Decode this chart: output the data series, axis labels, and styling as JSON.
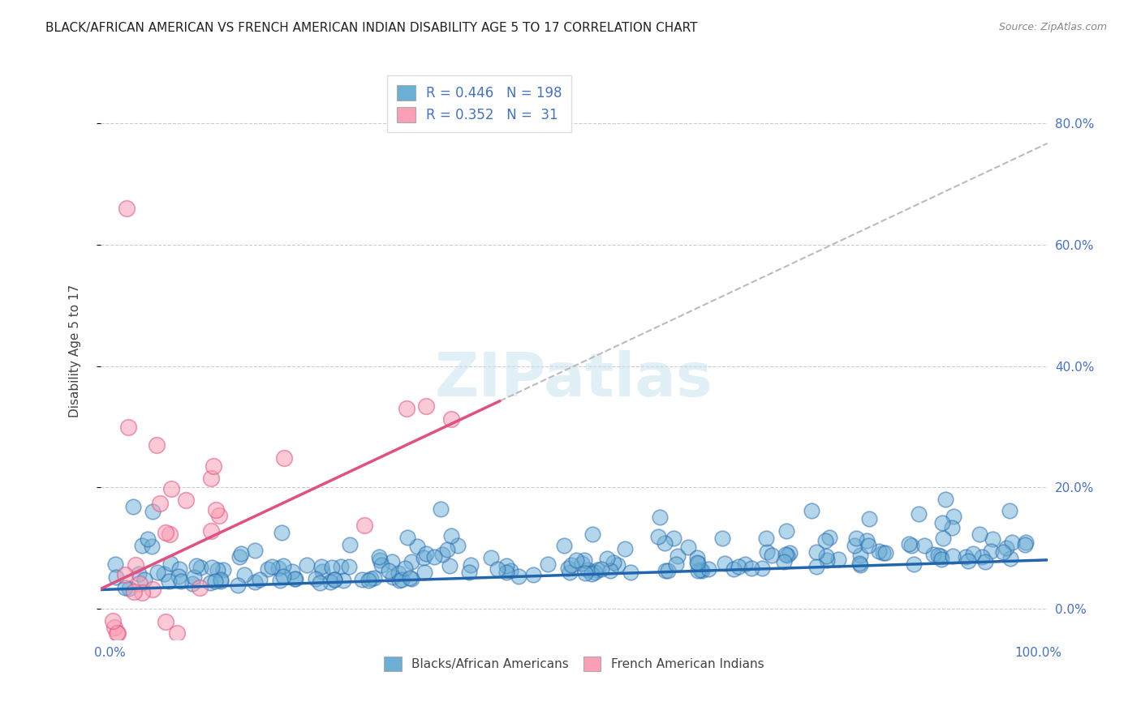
{
  "title": "BLACK/AFRICAN AMERICAN VS FRENCH AMERICAN INDIAN DISABILITY AGE 5 TO 17 CORRELATION CHART",
  "source": "Source: ZipAtlas.com",
  "ylabel": "Disability Age 5 to 17",
  "yticks": [
    0.0,
    0.2,
    0.4,
    0.6,
    0.8
  ],
  "ytick_labels": [
    "0.0%",
    "20.0%",
    "40.0%",
    "60.0%",
    "80.0%"
  ],
  "xlim": [
    -0.01,
    1.01
  ],
  "ylim": [
    -0.05,
    0.9
  ],
  "blue_R": 0.446,
  "blue_N": 198,
  "pink_R": 0.352,
  "pink_N": 31,
  "blue_color": "#6baed6",
  "pink_color": "#fa9fb5",
  "blue_line_color": "#2166ac",
  "pink_line_color": "#e05080",
  "grid_color": "#cccccc",
  "watermark": "ZIPatlas",
  "blue_scatter_seed": 42,
  "pink_scatter_seed": 7,
  "blue_intercept": 0.032,
  "blue_slope": 0.048,
  "pink_intercept": 0.04,
  "pink_slope": 0.72,
  "background_color": "#ffffff",
  "title_fontsize": 11,
  "axis_label_color": "#4472c4",
  "legend_text_color": "#4472c4"
}
